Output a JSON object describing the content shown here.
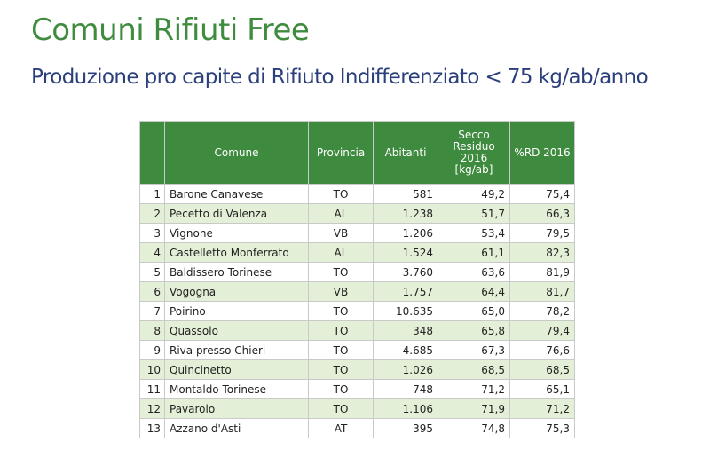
{
  "page": {
    "title": "Comuni Rifiuti Free",
    "subtitle": "Produzione pro capite di Rifiuto Indifferenziato < 75 kg/ab/anno"
  },
  "colors": {
    "title": "#3f8c3f",
    "subtitle": "#2b3f7c",
    "header_bg": "#3e8a3e",
    "alt_row_bg": "#e3efd6"
  },
  "table": {
    "headers": [
      "",
      "Comune",
      "Provincia",
      "Abitanti",
      "Secco Residuo 2016 [kg/ab]",
      "%RD 2016"
    ],
    "rows": [
      {
        "n": "1",
        "comune": "Barone Canavese",
        "provincia": "TO",
        "abitanti": "581",
        "secco": "49,2",
        "rd": "75,4"
      },
      {
        "n": "2",
        "comune": "Pecetto di Valenza",
        "provincia": "AL",
        "abitanti": "1.238",
        "secco": "51,7",
        "rd": "66,3"
      },
      {
        "n": "3",
        "comune": "Vignone",
        "provincia": "VB",
        "abitanti": "1.206",
        "secco": "53,4",
        "rd": "79,5"
      },
      {
        "n": "4",
        "comune": "Castelletto Monferrato",
        "provincia": "AL",
        "abitanti": "1.524",
        "secco": "61,1",
        "rd": "82,3"
      },
      {
        "n": "5",
        "comune": "Baldissero Torinese",
        "provincia": "TO",
        "abitanti": "3.760",
        "secco": "63,6",
        "rd": "81,9"
      },
      {
        "n": "6",
        "comune": "Vogogna",
        "provincia": "VB",
        "abitanti": "1.757",
        "secco": "64,4",
        "rd": "81,7"
      },
      {
        "n": "7",
        "comune": "Poirino",
        "provincia": "TO",
        "abitanti": "10.635",
        "secco": "65,0",
        "rd": "78,2"
      },
      {
        "n": "8",
        "comune": "Quassolo",
        "provincia": "TO",
        "abitanti": "348",
        "secco": "65,8",
        "rd": "79,4"
      },
      {
        "n": "9",
        "comune": "Riva presso Chieri",
        "provincia": "TO",
        "abitanti": "4.685",
        "secco": "67,3",
        "rd": "76,6"
      },
      {
        "n": "10",
        "comune": "Quincinetto",
        "provincia": "TO",
        "abitanti": "1.026",
        "secco": "68,5",
        "rd": "68,5"
      },
      {
        "n": "11",
        "comune": "Montaldo Torinese",
        "provincia": "TO",
        "abitanti": "748",
        "secco": "71,2",
        "rd": "65,1"
      },
      {
        "n": "12",
        "comune": "Pavarolo",
        "provincia": "TO",
        "abitanti": "1.106",
        "secco": "71,9",
        "rd": "71,2"
      },
      {
        "n": "13",
        "comune": "Azzano d'Asti",
        "provincia": "AT",
        "abitanti": "395",
        "secco": "74,8",
        "rd": "75,3"
      }
    ]
  }
}
